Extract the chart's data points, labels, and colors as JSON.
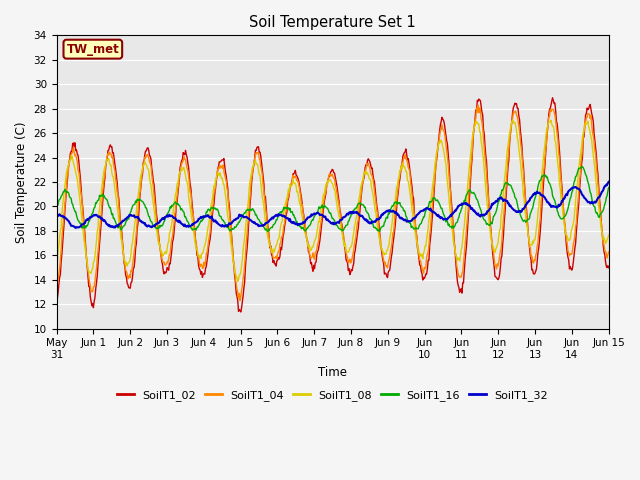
{
  "title": "Soil Temperature Set 1",
  "xlabel": "Time",
  "ylabel": "Soil Temperature (C)",
  "ylim": [
    10,
    34
  ],
  "xlim": [
    0,
    15
  ],
  "plot_bg": "#e8e8e8",
  "fig_bg": "#f5f5f5",
  "annotation_text": "TW_met",
  "annotation_bg": "#ffffbb",
  "annotation_border": "#8B0000",
  "lines": {
    "SoilT1_02": {
      "color": "#cc0000",
      "lw": 1.0
    },
    "SoilT1_04": {
      "color": "#ff8800",
      "lw": 1.0
    },
    "SoilT1_08": {
      "color": "#ddcc00",
      "lw": 1.0
    },
    "SoilT1_16": {
      "color": "#00aa00",
      "lw": 1.0
    },
    "SoilT1_32": {
      "color": "#0000cc",
      "lw": 1.5
    }
  },
  "xtick_positions": [
    0,
    1,
    2,
    3,
    4,
    5,
    6,
    7,
    8,
    9,
    10,
    11,
    12,
    13,
    14,
    15
  ],
  "xtick_labels": [
    "May\n31",
    "Jun 1",
    "Jun 2",
    "Jun 3",
    "Jun 4",
    "Jun 5",
    "Jun 6",
    "Jun 7",
    "Jun 8",
    "Jun 9",
    "Jun\n10",
    "Jun\n11",
    "Jun\n12",
    "Jun\n13",
    "Jun\n14",
    "Jun 15"
  ],
  "ytick_positions": [
    10,
    12,
    14,
    16,
    18,
    20,
    22,
    24,
    26,
    28,
    30,
    32,
    34
  ],
  "seed": 0
}
